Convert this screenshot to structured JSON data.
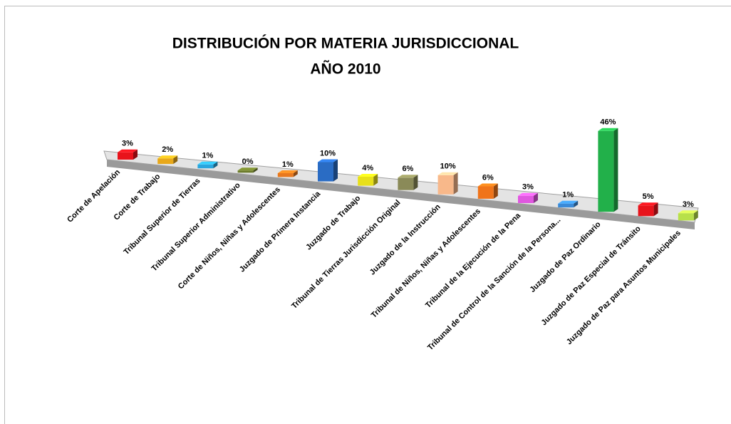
{
  "chart_data": {
    "type": "bar3d",
    "title": [
      "DISTRIBUCIÓN POR MATERIA JURISDICCIONAL",
      "AÑO 2010"
    ],
    "categories": [
      "Corte de Apelación",
      "Corte de Trabajo",
      "Tribunal Superior de Tierras",
      "Tribunal Superior Administrativo",
      "Corte de Niños, Niñas y Adolescentes",
      "Juzgado de Primera Instancia",
      "Juzgado de Trabajo",
      "Tribunal de Tierras Jurisdicción Original",
      "Juzgado de la Instrucción",
      "Tribunal de Niños, Niñas y Adolescentes",
      "Tribunal de la Ejecución de la Pena",
      "Tribunal de Control  de la Sanción de la Persona...",
      "Juzgado de Paz Ordinario",
      "Juzgado de Paz Especial de Tránsito",
      "Juzgado de Paz para Asuntos Municipales"
    ],
    "values": [
      3,
      2,
      1,
      0,
      1,
      10,
      4,
      6,
      10,
      6,
      3,
      1,
      46,
      5,
      3
    ],
    "value_labels": [
      "3%",
      "2%",
      "1%",
      "0%",
      "1%",
      "10%",
      "4%",
      "6%",
      "10%",
      "6%",
      "3%",
      "1%",
      "46%",
      "5%",
      "3%"
    ],
    "colors": [
      "#e8131b",
      "#e8a81a",
      "#2aa6de",
      "#6b7a2a",
      "#e8781e",
      "#2a6cc4",
      "#e8e01a",
      "#8a8a58",
      "#f8b88a",
      "#f0741a",
      "#e058e0",
      "#3a8ad8",
      "#22b04a",
      "#e8131b",
      "#b8e04a"
    ]
  }
}
